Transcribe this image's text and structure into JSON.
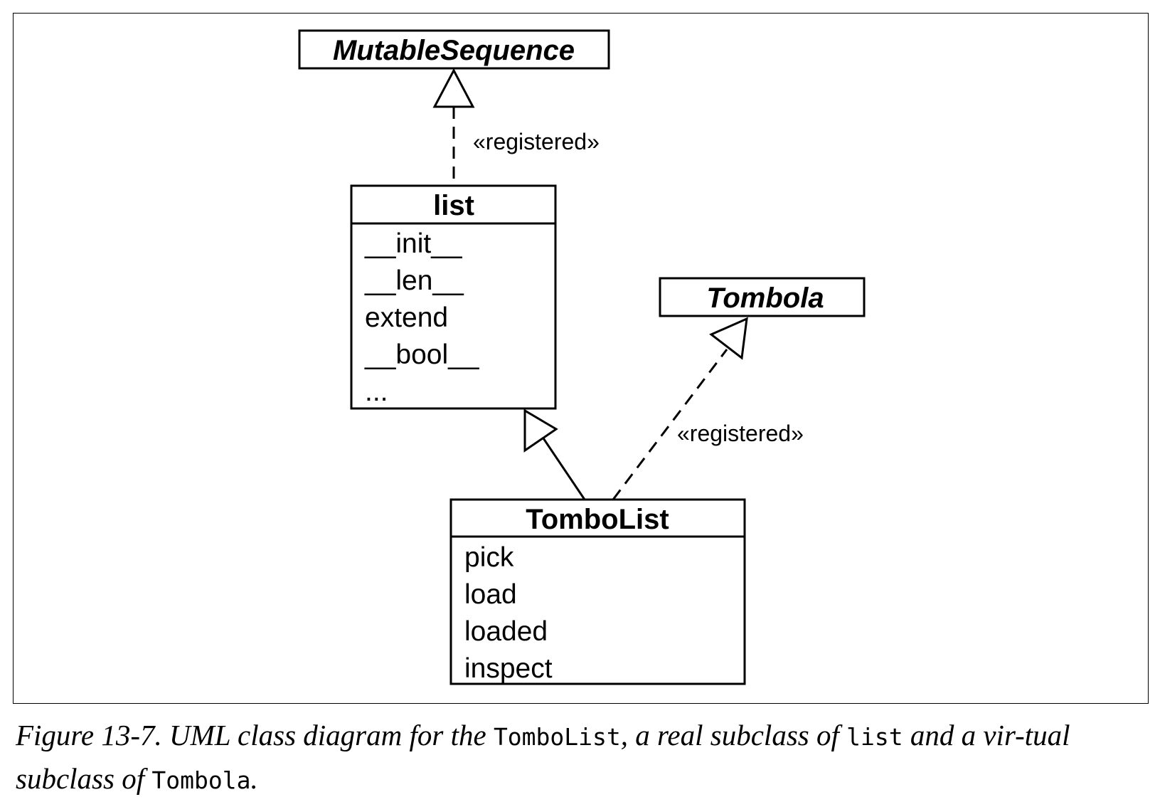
{
  "diagram": {
    "classes": {
      "mutable_sequence": {
        "name": "MutableSequence",
        "abstract": true
      },
      "list": {
        "name": "list",
        "abstract": false,
        "members": [
          "__init__",
          "__len__",
          "extend",
          "__bool__",
          "..."
        ]
      },
      "tombola": {
        "name": "Tombola",
        "abstract": true
      },
      "tombolist": {
        "name": "TomboList",
        "abstract": false,
        "members": [
          "pick",
          "load",
          "loaded",
          "inspect"
        ]
      }
    },
    "relations": [
      {
        "from": "list",
        "to": "MutableSequence",
        "kind": "realization",
        "label": "«registered»"
      },
      {
        "from": "TomboList",
        "to": "list",
        "kind": "generalization",
        "label": ""
      },
      {
        "from": "TomboList",
        "to": "Tombola",
        "kind": "realization",
        "label": "«registered»"
      }
    ]
  },
  "caption": {
    "prefix": "Figure 13-7. UML class diagram for the ",
    "code1": "TomboList",
    "middle1": ", a real subclass of ",
    "code2": "list",
    "middle2": " and a vir-tual subclass of ",
    "code3": "Tombola",
    "suffix": "."
  }
}
